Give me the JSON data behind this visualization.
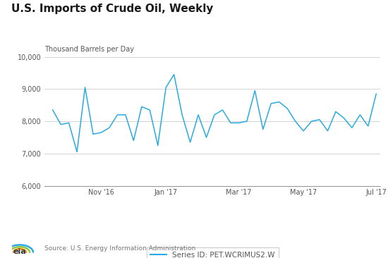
{
  "title": "U.S. Imports of Crude Oil, Weekly",
  "ylabel": "Thousand Barrels per Day",
  "source": "Source: U.S. Energy Information Administration",
  "legend_label": "Series ID: PET.WCRIMUS2.W",
  "line_color": "#29ABE2",
  "ylim": [
    6000,
    10000
  ],
  "yticks": [
    6000,
    7000,
    8000,
    9000,
    10000
  ],
  "ytick_labels": [
    "6,000",
    "7,000",
    "8,000",
    "9,000",
    "10,000"
  ],
  "x_tick_labels": [
    "Nov '16",
    "Jan '17",
    "Mar '17",
    "May '17",
    "Jul '17"
  ],
  "x_tick_positions": [
    6,
    14,
    23,
    31,
    40
  ],
  "values": [
    8350,
    7900,
    7950,
    7050,
    9050,
    7600,
    7650,
    7800,
    8200,
    8200,
    7400,
    8450,
    8350,
    7250,
    9050,
    9450,
    8200,
    7350,
    8200,
    7500,
    8200,
    8350,
    7950,
    7950,
    8000,
    8950,
    7750,
    8550,
    8600,
    8400,
    8000,
    7700,
    8000,
    8050,
    7700,
    8300,
    8100,
    7800,
    8200,
    7850,
    8850
  ],
  "bg_color": "#ffffff",
  "grid_color": "#cccccc",
  "spine_color": "#999999",
  "tick_color": "#555555"
}
